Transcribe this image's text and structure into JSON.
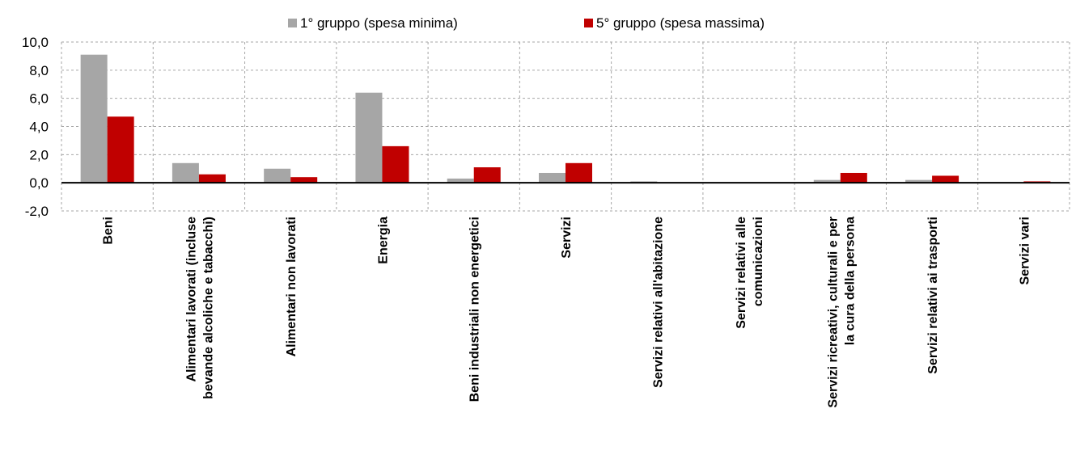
{
  "chart_data": {
    "type": "bar",
    "categories": [
      [
        "Beni"
      ],
      [
        "Alimentari lavorati (incluse",
        "bevande alcoliche e tabacchi)"
      ],
      [
        "Alimentari non lavorati"
      ],
      [
        "Energia"
      ],
      [
        "Beni industriali non energetici"
      ],
      [
        "Servizi"
      ],
      [
        "Servizi relativi all'abitazione"
      ],
      [
        "Servizi relativi alle",
        "comunicazioni"
      ],
      [
        "Servizi ricreativi, culturali e per",
        "la cura della persona"
      ],
      [
        "Servizi relativi ai trasporti"
      ],
      [
        "Servizi vari"
      ]
    ],
    "series": [
      {
        "name": "1° gruppo (spesa minima)",
        "color": "#a6a6a6",
        "values": [
          9.1,
          1.4,
          1.0,
          6.4,
          0.3,
          0.7,
          0.1,
          0.0,
          0.2,
          0.2,
          0.0
        ]
      },
      {
        "name": "5° gruppo (spesa massima)",
        "color": "#c00000",
        "values": [
          4.7,
          0.6,
          0.4,
          2.6,
          1.1,
          1.4,
          0.0,
          0.0,
          0.7,
          0.5,
          0.1
        ]
      }
    ],
    "ylim": [
      -2.0,
      10.0
    ],
    "yticks": [
      "10,0",
      "8,0",
      "6,0",
      "4,0",
      "2,0",
      "0,0",
      "-2,0"
    ],
    "ytick_values": [
      10,
      8,
      6,
      4,
      2,
      0,
      -2
    ],
    "grid": true,
    "legend_position": "top-center"
  }
}
